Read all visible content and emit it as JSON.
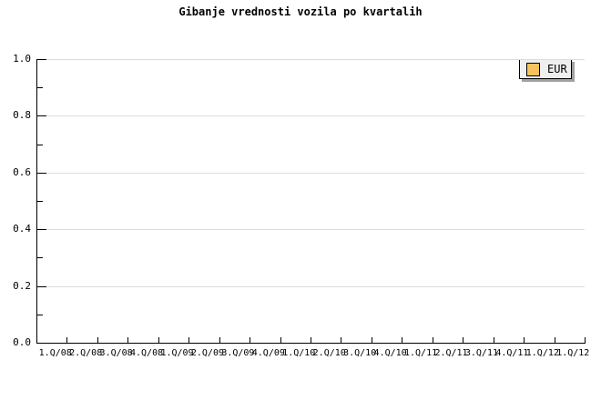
{
  "title": "Gibanje vrednosti vozila po kvartalih",
  "legend": {
    "items": [
      {
        "label": "EUR",
        "swatch_color": "#F7C35F"
      }
    ]
  },
  "colors": {
    "background": "#FFFFFF",
    "axis": "#000000",
    "grid": "#DCDCDC",
    "text": "#000000",
    "legend_bg": "#EFEFEF",
    "legend_shadow": "#A0A0A0",
    "series_eur": "#F7C35F"
  },
  "chart_data": {
    "type": "line",
    "title": "Gibanje vrednosti vozila po kvartalih",
    "categories": [
      "1.Q/08",
      "2.Q/08",
      "3.Q/08",
      "4.Q/08",
      "1.Q/09",
      "2.Q/09",
      "3.Q/09",
      "4.Q/09",
      "1.Q/10",
      "2.Q/10",
      "3.Q/10",
      "4.Q/10",
      "1.Q/11",
      "2.Q/11",
      "3.Q/11",
      "4.Q/11",
      "1.Q/12",
      "1.Q/12"
    ],
    "series": [
      {
        "name": "EUR",
        "color": "#F7C35F",
        "values": []
      }
    ],
    "xlabel": "",
    "ylabel": "",
    "ylim": [
      0.0,
      1.0
    ],
    "y_major_ticks": [
      0.0,
      0.2,
      0.4,
      0.6,
      0.8,
      1.0
    ],
    "y_tick_labels": [
      "0.0",
      "0.2",
      "0.4",
      "0.6",
      "0.8",
      "1.0"
    ],
    "y_minor_ticks": [
      0.1,
      0.3,
      0.5,
      0.7,
      0.9
    ],
    "grid": "horizontal-major",
    "legend_position": "top-right",
    "plot_is_empty": true
  }
}
